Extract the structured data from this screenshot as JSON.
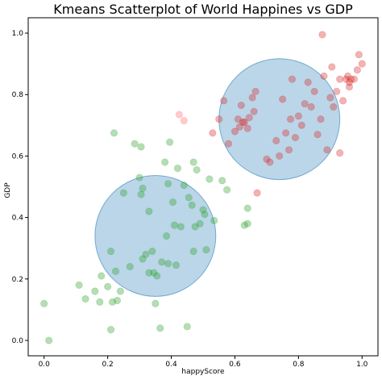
{
  "chart_data": {
    "type": "scatter",
    "title": "Kmeans Scatterplot of World Happines vs GDP",
    "xlabel": "happyScore",
    "ylabel": "GDP",
    "xlim": [
      -0.05,
      1.05
    ],
    "ylim": [
      -0.05,
      1.05
    ],
    "xticks": [
      0.0,
      0.2,
      0.4,
      0.6,
      0.8,
      1.0
    ],
    "yticks": [
      0.0,
      0.2,
      0.4,
      0.6,
      0.8,
      1.0
    ],
    "xtick_labels": [
      "0.0",
      "0.2",
      "0.4",
      "0.6",
      "0.8",
      "1.0"
    ],
    "ytick_labels": [
      "0.0",
      "0.2",
      "0.4",
      "0.6",
      "0.8",
      "1.0"
    ],
    "grid": false,
    "colors": {
      "cluster_low": "#2ca02c",
      "cluster_high": "#d62728",
      "cluster_outlier": "#ff6b6b",
      "circle": "#1f77b4"
    },
    "circles": [
      {
        "center": [
          0.35,
          0.34
        ],
        "radius": 0.19
      },
      {
        "center": [
          0.74,
          0.72
        ],
        "radius": 0.19
      }
    ],
    "series": [
      {
        "color_key": "cluster_low",
        "points": [
          [
            0.0,
            0.12
          ],
          [
            0.015,
            0.0
          ],
          [
            0.22,
            0.675
          ],
          [
            0.21,
            0.035
          ],
          [
            0.11,
            0.18
          ],
          [
            0.13,
            0.135
          ],
          [
            0.16,
            0.16
          ],
          [
            0.175,
            0.125
          ],
          [
            0.2,
            0.175
          ],
          [
            0.18,
            0.21
          ],
          [
            0.21,
            0.29
          ],
          [
            0.215,
            0.125
          ],
          [
            0.225,
            0.225
          ],
          [
            0.23,
            0.13
          ],
          [
            0.24,
            0.16
          ],
          [
            0.25,
            0.48
          ],
          [
            0.27,
            0.24
          ],
          [
            0.285,
            0.64
          ],
          [
            0.3,
            0.53
          ],
          [
            0.305,
            0.475
          ],
          [
            0.305,
            0.63
          ],
          [
            0.31,
            0.495
          ],
          [
            0.31,
            0.265
          ],
          [
            0.32,
            0.28
          ],
          [
            0.33,
            0.22
          ],
          [
            0.33,
            0.42
          ],
          [
            0.34,
            0.29
          ],
          [
            0.345,
            0.22
          ],
          [
            0.35,
            0.12
          ],
          [
            0.355,
            0.21
          ],
          [
            0.365,
            0.04
          ],
          [
            0.37,
            0.255
          ],
          [
            0.38,
            0.58
          ],
          [
            0.385,
            0.34
          ],
          [
            0.39,
            0.25
          ],
          [
            0.39,
            0.51
          ],
          [
            0.395,
            0.645
          ],
          [
            0.405,
            0.45
          ],
          [
            0.41,
            0.375
          ],
          [
            0.415,
            0.245
          ],
          [
            0.42,
            0.56
          ],
          [
            0.43,
            0.37
          ],
          [
            0.44,
            0.505
          ],
          [
            0.45,
            0.045
          ],
          [
            0.455,
            0.465
          ],
          [
            0.465,
            0.44
          ],
          [
            0.47,
            0.58
          ],
          [
            0.47,
            0.29
          ],
          [
            0.475,
            0.37
          ],
          [
            0.48,
            0.555
          ],
          [
            0.49,
            0.38
          ],
          [
            0.5,
            0.425
          ],
          [
            0.505,
            0.41
          ],
          [
            0.51,
            0.295
          ],
          [
            0.52,
            0.525
          ],
          [
            0.535,
            0.39
          ],
          [
            0.56,
            0.52
          ],
          [
            0.575,
            0.49
          ],
          [
            0.63,
            0.375
          ],
          [
            0.64,
            0.38
          ],
          [
            0.64,
            0.43
          ]
        ]
      },
      {
        "color_key": "cluster_outlier",
        "points": [
          [
            0.425,
            0.735
          ],
          [
            0.44,
            0.715
          ]
        ]
      },
      {
        "color_key": "cluster_high",
        "points": [
          [
            0.53,
            0.675
          ],
          [
            0.55,
            0.72
          ],
          [
            0.565,
            0.78
          ],
          [
            0.58,
            0.64
          ],
          [
            0.6,
            0.68
          ],
          [
            0.61,
            0.72
          ],
          [
            0.615,
            0.695
          ],
          [
            0.62,
            0.765
          ],
          [
            0.625,
            0.71
          ],
          [
            0.63,
            0.71
          ],
          [
            0.64,
            0.69
          ],
          [
            0.645,
            0.725
          ],
          [
            0.655,
            0.79
          ],
          [
            0.66,
            0.745
          ],
          [
            0.665,
            0.81
          ],
          [
            0.67,
            0.48
          ],
          [
            0.7,
            0.59
          ],
          [
            0.71,
            0.58
          ],
          [
            0.73,
            0.65
          ],
          [
            0.74,
            0.6
          ],
          [
            0.75,
            0.785
          ],
          [
            0.76,
            0.675
          ],
          [
            0.77,
            0.62
          ],
          [
            0.775,
            0.72
          ],
          [
            0.78,
            0.85
          ],
          [
            0.79,
            0.66
          ],
          [
            0.8,
            0.73
          ],
          [
            0.81,
            0.7
          ],
          [
            0.82,
            0.77
          ],
          [
            0.83,
            0.84
          ],
          [
            0.84,
            0.76
          ],
          [
            0.85,
            0.81
          ],
          [
            0.86,
            0.67
          ],
          [
            0.87,
            0.72
          ],
          [
            0.875,
            0.995
          ],
          [
            0.88,
            0.86
          ],
          [
            0.89,
            0.62
          ],
          [
            0.9,
            0.79
          ],
          [
            0.905,
            0.89
          ],
          [
            0.91,
            0.76
          ],
          [
            0.92,
            0.81
          ],
          [
            0.93,
            0.85
          ],
          [
            0.93,
            0.61
          ],
          [
            0.94,
            0.78
          ],
          [
            0.95,
            0.85
          ],
          [
            0.955,
            0.86
          ],
          [
            0.96,
            0.84
          ],
          [
            0.96,
            0.825
          ],
          [
            0.965,
            0.85
          ],
          [
            0.975,
            0.85
          ],
          [
            0.985,
            0.88
          ],
          [
            0.99,
            0.93
          ],
          [
            1.0,
            0.9
          ]
        ]
      }
    ]
  }
}
